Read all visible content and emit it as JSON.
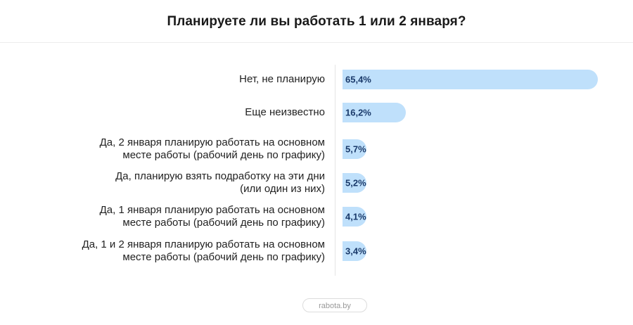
{
  "chart_data": {
    "type": "bar",
    "orientation": "horizontal",
    "title": "Планируете ли вы работать 1 или 2 января?",
    "categories": [
      "Нет, не планирую",
      "Еще неизвестно",
      "Да, 2 января планирую работать на основном\nместе работы (рабочий день по графику)",
      "Да, планирую взять подработку на эти дни\n(или один из них)",
      "Да, 1 января планирую работать на основном\nместе работы (рабочий день по графику)",
      "Да, 1 и 2 января планирую работать на основном\nместе работы (рабочий день по графику)"
    ],
    "values": [
      65.4,
      16.2,
      5.7,
      5.2,
      4.1,
      3.4
    ],
    "value_labels": [
      "65,4%",
      "16,2%",
      "5,7%",
      "5,2%",
      "4,1%",
      "3,4%"
    ],
    "unit": "%",
    "bar_color": "#bfe0fb",
    "label_color": "#1a3a6b",
    "grid": false
  },
  "source": "rabota.by"
}
